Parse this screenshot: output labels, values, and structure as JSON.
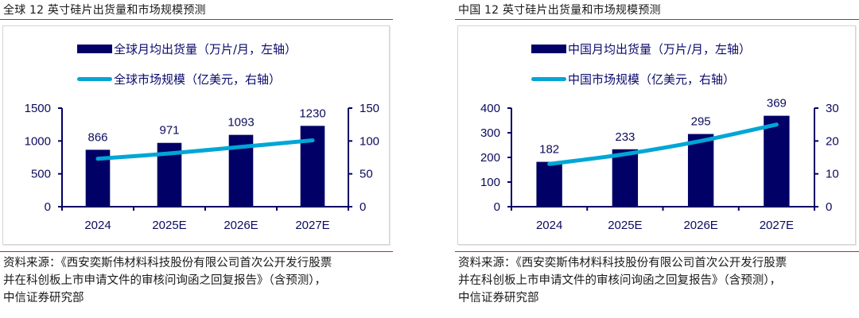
{
  "panels": [
    {
      "title": "全球 12 英寸硅片出货量和市场规模预测",
      "legend": {
        "bar": "全球月均出货量（万片/月，左轴）",
        "line": "全球市场规模（亿美元，右轴）"
      },
      "source_lines": [
        "资料来源：《西安奕斯伟材料科技股份有限公司首次公开发行股票",
        "并在科创板上市申请文件的审核问询函之回复报告》（含预测），",
        "中信证券研究部"
      ]
    },
    {
      "title": "中国 12 英寸硅片出货量和市场规模预测",
      "legend": {
        "bar": "中国月均出货量（万片/月，左轴）",
        "line": "中国市场规模（亿美元，右轴）"
      },
      "source_lines": [
        "资料来源：《西安奕斯伟材料科技股份有限公司首次公开发行股票",
        "并在科创板上市申请文件的审核问询函之回复报告》（含预测），",
        "中信证券研究部"
      ]
    }
  ],
  "colors": {
    "bar": "#000066",
    "line": "#00a6d6",
    "axis": "#000066",
    "rule": "#c0272d",
    "frame": "#d4d4d4"
  },
  "chart_data": [
    {
      "type": "bar",
      "title": "全球 12 英寸硅片出货量和市场规模预测",
      "categories": [
        "2024",
        "2025E",
        "2026E",
        "2027E"
      ],
      "series": [
        {
          "name": "全球月均出货量（万片/月，左轴）",
          "type": "bar",
          "axis": "left",
          "values": [
            866,
            971,
            1093,
            1230
          ],
          "data_labels": [
            "866",
            "971",
            "1093",
            "1230"
          ]
        },
        {
          "name": "全球市场规模（亿美元，右轴）",
          "type": "line",
          "axis": "right",
          "values": [
            73,
            81,
            91,
            101
          ]
        }
      ],
      "ylim_left": [
        0,
        1500
      ],
      "yticks_left": [
        0,
        500,
        1000,
        1500
      ],
      "ylim_right": [
        0,
        150
      ],
      "yticks_right": [
        0,
        50,
        100,
        150
      ],
      "xlabel": "",
      "ylabel_left": "",
      "ylabel_right": "",
      "grid": false,
      "legend_position": "top"
    },
    {
      "type": "bar",
      "title": "中国 12 英寸硅片出货量和市场规模预测",
      "categories": [
        "2024",
        "2025E",
        "2026E",
        "2027E"
      ],
      "series": [
        {
          "name": "中国月均出货量（万片/月，左轴）",
          "type": "bar",
          "axis": "left",
          "values": [
            182,
            233,
            295,
            369
          ],
          "data_labels": [
            "182",
            "233",
            "295",
            "369"
          ]
        },
        {
          "name": "中国市场规模（亿美元，右轴）",
          "type": "line",
          "axis": "right",
          "values": [
            13,
            16,
            20,
            25
          ]
        }
      ],
      "ylim_left": [
        0,
        400
      ],
      "yticks_left": [
        0,
        100,
        200,
        300,
        400
      ],
      "ylim_right": [
        0,
        30
      ],
      "yticks_right": [
        0,
        10,
        20,
        30
      ],
      "xlabel": "",
      "ylabel_left": "",
      "ylabel_right": "",
      "grid": false,
      "legend_position": "top"
    }
  ]
}
